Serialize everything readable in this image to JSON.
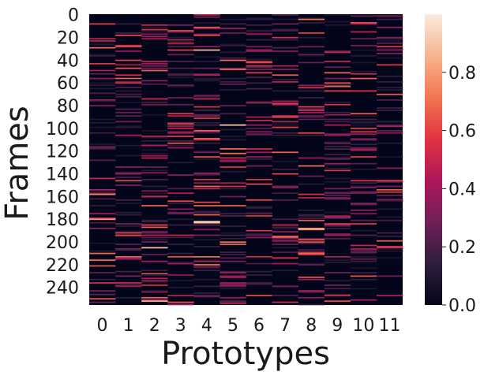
{
  "chart_data": {
    "type": "heatmap",
    "title": "",
    "xlabel": "Prototypes",
    "ylabel": "Frames",
    "x_categories": [
      "0",
      "1",
      "2",
      "3",
      "4",
      "5",
      "6",
      "7",
      "8",
      "9",
      "10",
      "11"
    ],
    "y_range": [
      0,
      256
    ],
    "y_ticks": [
      "0",
      "20",
      "40",
      "60",
      "80",
      "100",
      "120",
      "140",
      "160",
      "180",
      "200",
      "220",
      "240"
    ],
    "colorbar": {
      "min": 0.0,
      "max": 1.0,
      "ticks": [
        "0.0",
        "0.2",
        "0.4",
        "0.6",
        "0.8"
      ],
      "colormap": "rocket",
      "stops": [
        "#03051a",
        "#2e1e3c",
        "#701f57",
        "#ad1759",
        "#e13342",
        "#f37651",
        "#f6b48f",
        "#faebdd"
      ]
    },
    "seed": 271,
    "sparsity": 0.22,
    "highlights": [
      {
        "col": 4,
        "row": 182,
        "value": 0.95
      },
      {
        "col": 4,
        "row": 183,
        "value": 0.9
      },
      {
        "col": 8,
        "row": 188,
        "value": 0.8
      },
      {
        "col": 8,
        "row": 189,
        "value": 0.78
      },
      {
        "col": 5,
        "row": 97,
        "value": 0.9
      },
      {
        "col": 0,
        "row": 158,
        "value": 0.75
      },
      {
        "col": 0,
        "row": 180,
        "value": 0.8
      },
      {
        "col": 8,
        "row": 4,
        "value": 0.7
      },
      {
        "col": 4,
        "row": 31,
        "value": 0.88
      },
      {
        "col": 3,
        "row": 25,
        "value": 0.55
      },
      {
        "col": 7,
        "row": 20,
        "value": 0.55
      },
      {
        "col": 7,
        "row": 78,
        "value": 0.6
      },
      {
        "col": 1,
        "row": 56,
        "value": 0.7
      },
      {
        "col": 2,
        "row": 205,
        "value": 0.9
      },
      {
        "col": 2,
        "row": 252,
        "value": 0.85
      }
    ]
  }
}
